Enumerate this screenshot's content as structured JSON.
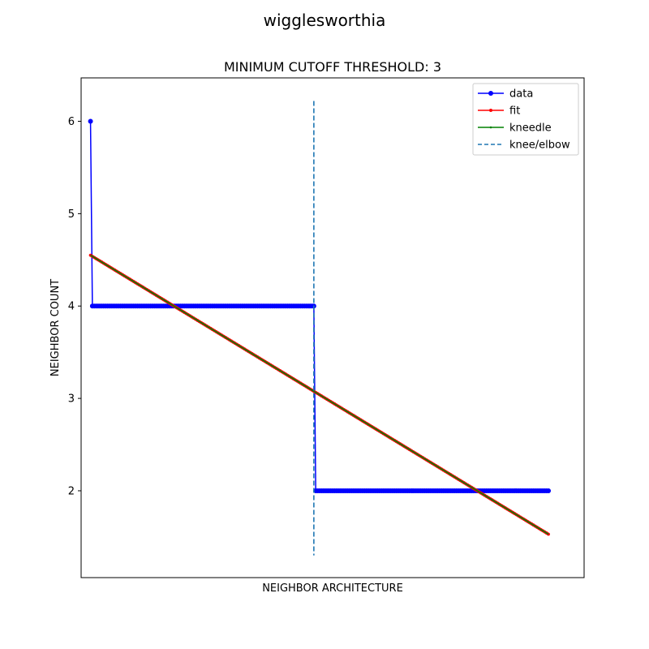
{
  "chart_data": {
    "type": "line",
    "suptitle": "wigglesworthia",
    "title": "MINIMUM CUTOFF THRESHOLD: 3",
    "xlabel": "NEIGHBOR ARCHITECTURE",
    "ylabel": "NEIGHBOR COUNT",
    "x_tick_labels_shown": false,
    "x_count": 245,
    "xlim": [
      -5,
      263
    ],
    "ylim": [
      1.06,
      6.47
    ],
    "yticks": [
      2,
      3,
      4,
      5,
      6
    ],
    "grid": false,
    "legend_position": "upper right",
    "knee_x": 119,
    "knee_line_ylim": [
      1.3,
      6.22
    ],
    "series": [
      {
        "name": "data",
        "color": "#0000ff",
        "marker": "circle",
        "segments": [
          {
            "x_from": 0,
            "x_to": 0,
            "y": 6
          },
          {
            "x_from": 1,
            "x_to": 119,
            "y": 4
          },
          {
            "x_from": 120,
            "x_to": 244,
            "y": 2
          }
        ]
      },
      {
        "name": "fit",
        "color": "#ff0000",
        "marker": "small-dot",
        "linear": {
          "x0": 0,
          "y0": 4.55,
          "x1": 244,
          "y1": 1.53
        }
      },
      {
        "name": "kneedle",
        "color": "#008000",
        "marker": "tiny-dot",
        "linear": {
          "x0": 0,
          "y0": 4.55,
          "x1": 244,
          "y1": 1.53
        }
      },
      {
        "name": "knee/elbow",
        "color": "#1f77b4",
        "style": "dashed"
      }
    ]
  }
}
